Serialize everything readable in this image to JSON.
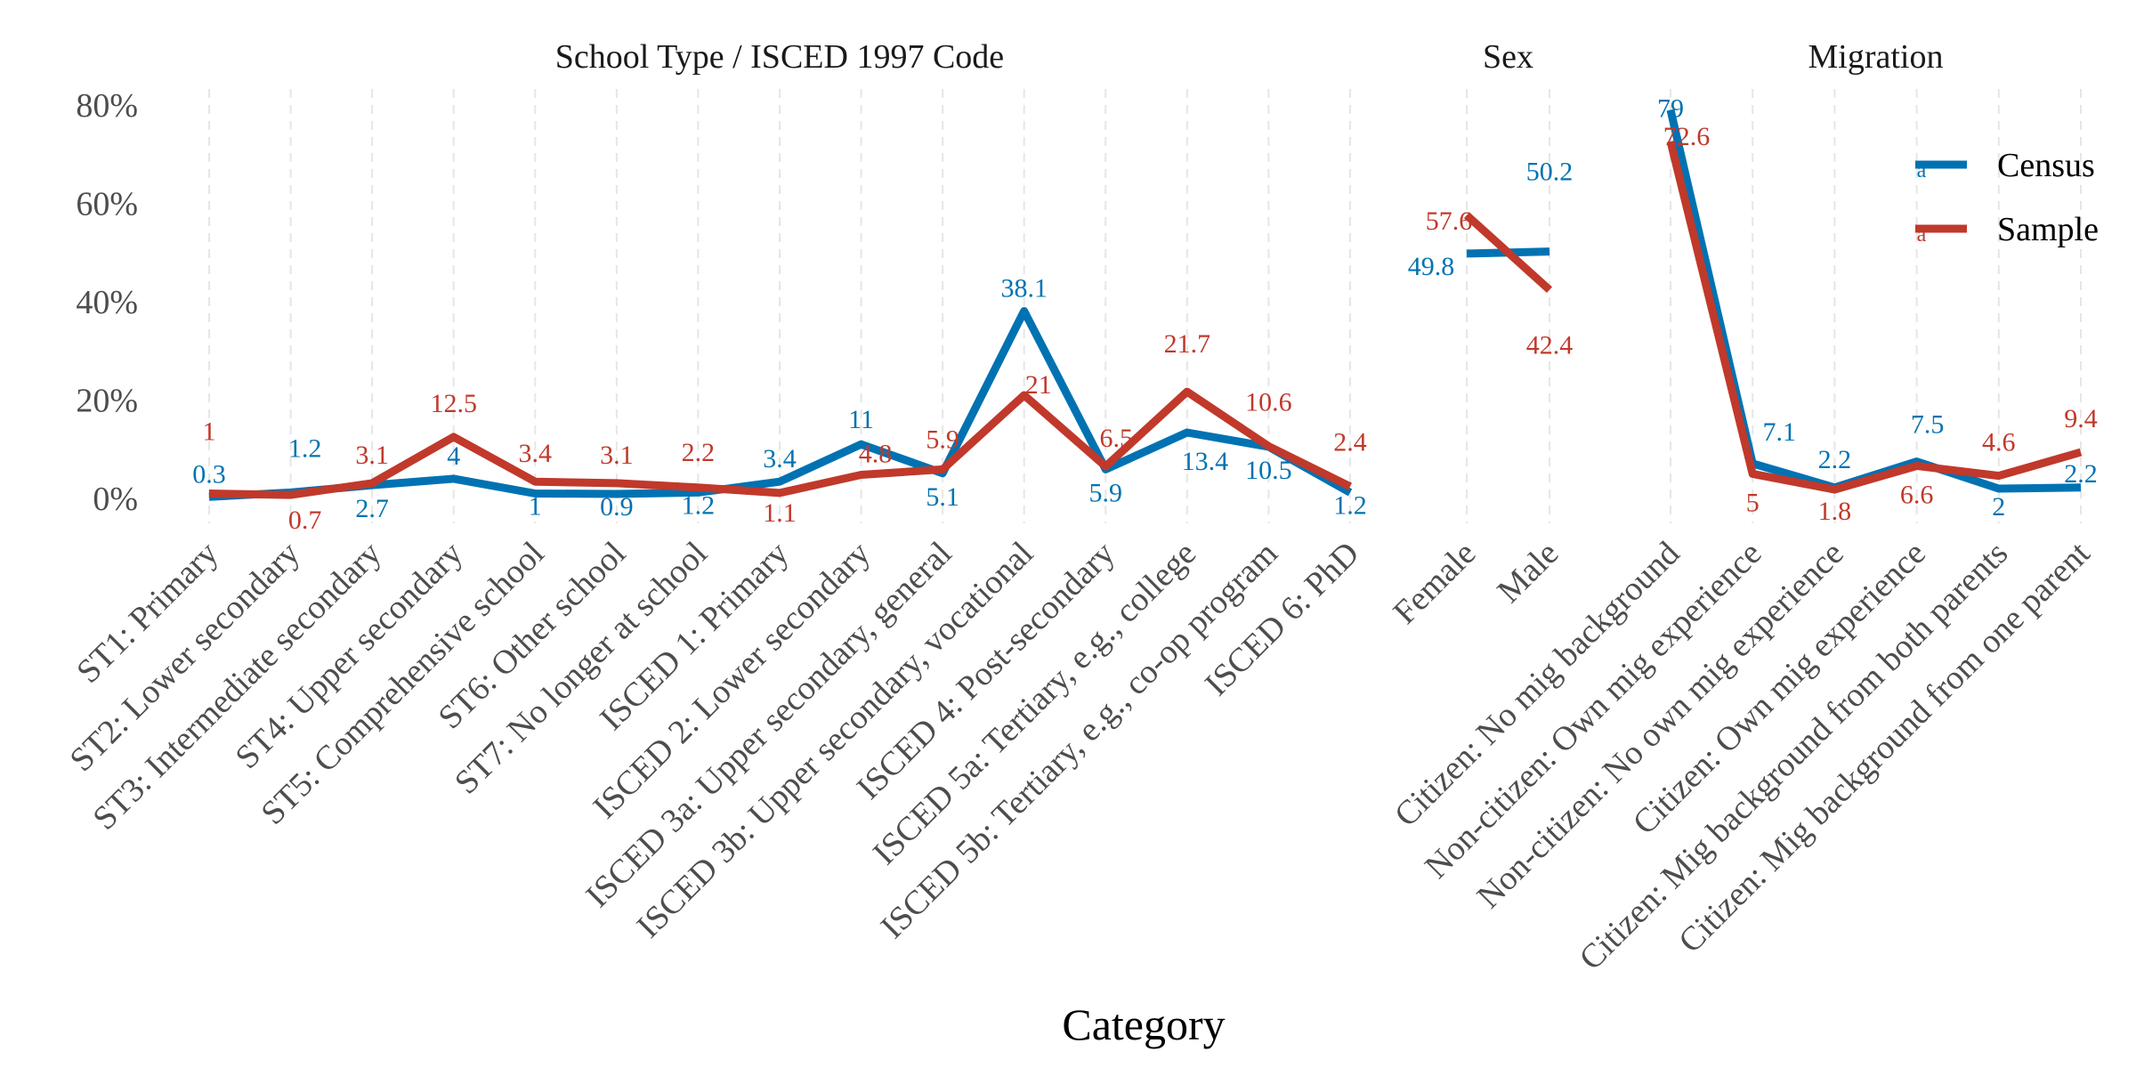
{
  "colors": {
    "census": "#0072B2",
    "sample": "#C0392B"
  },
  "x_axis_title": "Category",
  "y_ticks": [
    "0%",
    "20%",
    "40%",
    "60%",
    "80%"
  ],
  "legend": [
    {
      "name": "Census",
      "key_char": "a"
    },
    {
      "name": "Sample",
      "key_char": "a"
    }
  ],
  "chart_data": {
    "type": "line",
    "xlabel": "Category",
    "ylabel": "",
    "ylim": [
      0,
      80
    ],
    "y_tick_values": [
      0,
      20,
      40,
      60,
      80
    ],
    "grid": "vertical dashed",
    "legend_position": "top-right",
    "panels": [
      {
        "title": "School Type / ISCED 1997 Code",
        "categories": [
          "ST1: Primary",
          "ST2: Lower secondary",
          "ST3: Intermediate secondary",
          "ST4: Upper secondary",
          "ST5: Comprehensive school",
          "ST6: Other school",
          "ST7: No longer at school",
          "ISCED 1: Primary",
          "ISCED 2: Lower secondary",
          "ISCED 3a: Upper secondary, general",
          "ISCED 3b: Upper secondary, vocational",
          "ISCED 4: Post-secondary",
          "ISCED 5a: Tertiary, e.g., college",
          "ISCED 5b: Tertiary, e.g., co-op program",
          "ISCED 6: PhD"
        ],
        "series": [
          {
            "name": "Census",
            "values": [
              0.3,
              1.2,
              2.7,
              4,
              1,
              0.9,
              1.2,
              3.4,
              11,
              5.1,
              38.1,
              5.9,
              13.4,
              10.5,
              1.2
            ],
            "labels": [
              "0.3",
              "1.2",
              "2.7",
              "4",
              "1",
              "0.9",
              "1.2",
              "3.4",
              "11",
              "5.1",
              "38.1",
              "5.9",
              "13.4",
              "10.5",
              "1.2"
            ]
          },
          {
            "name": "Sample",
            "values": [
              1,
              0.7,
              3.1,
              12.5,
              3.4,
              3.1,
              2.2,
              1.1,
              4.8,
              5.9,
              21,
              6.5,
              21.7,
              10.6,
              2.4
            ],
            "labels": [
              "1",
              "0.7",
              "3.1",
              "12.5",
              "3.4",
              "3.1",
              "2.2",
              "1.1",
              "4.8",
              "5.9",
              "21",
              "6.5",
              "21.7",
              "10.6",
              "2.4"
            ]
          }
        ]
      },
      {
        "title": "Sex",
        "categories": [
          "Female",
          "Male"
        ],
        "series": [
          {
            "name": "Census",
            "values": [
              49.8,
              50.2
            ],
            "labels": [
              "49.8",
              "50.2"
            ]
          },
          {
            "name": "Sample",
            "values": [
              57.6,
              42.4
            ],
            "labels": [
              "57.6",
              "42.4"
            ]
          }
        ]
      },
      {
        "title": "Migration",
        "categories": [
          "Citizen: No mig background",
          "Non-citizen: Own mig experience",
          "Non-citizen: No own mig experience",
          "Citizen: Own mig experience",
          "Citizen: Mig background from both parents",
          "Citizen: Mig background from one parent"
        ],
        "series": [
          {
            "name": "Census",
            "values": [
              79,
              7.1,
              2.2,
              7.5,
              2,
              2.2
            ],
            "labels": [
              "79",
              "7.1",
              "2.2",
              "7.5",
              "2",
              "2.2"
            ]
          },
          {
            "name": "Sample",
            "values": [
              72.6,
              5,
              1.8,
              6.6,
              4.6,
              9.4
            ],
            "labels": [
              "72.6",
              "5",
              "1.8",
              "6.6",
              "4.6",
              "9.4"
            ]
          }
        ]
      }
    ]
  }
}
